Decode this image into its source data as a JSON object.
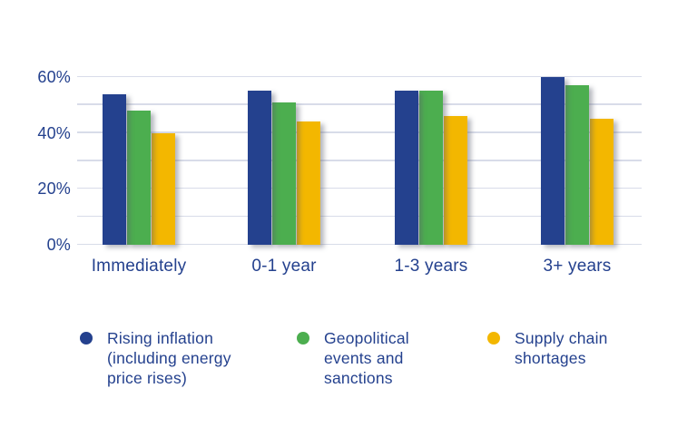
{
  "chart_data": {
    "type": "bar",
    "title": "",
    "xlabel": "",
    "ylabel": "",
    "categories": [
      "Immediately",
      "0-1 year",
      "1-3 years",
      "3+ years"
    ],
    "series": [
      {
        "name": "Rising inflation (including energy price rises)",
        "legend_text": "Rising inflation\n(including energy\nprice rises)",
        "color": "#24418e",
        "values": [
          54,
          55,
          55,
          60
        ]
      },
      {
        "name": "Geopolitical events and sanctions",
        "legend_text": "Geopolitical\nevents and\nsanctions",
        "color": "#4cae4f",
        "values": [
          48,
          51,
          55,
          57
        ]
      },
      {
        "name": "Supply chain shortages",
        "legend_text": "Supply chain\nshortages",
        "color": "#f3b700",
        "values": [
          40,
          44,
          46,
          45
        ]
      }
    ],
    "y_ticks": [
      {
        "value": 0,
        "label": "0%"
      },
      {
        "value": 20,
        "label": "20%"
      },
      {
        "value": 40,
        "label": "40%"
      },
      {
        "value": 60,
        "label": "60%"
      }
    ],
    "ylim": [
      0,
      60
    ],
    "gridline_step": 10,
    "grid": true,
    "legend_position": "bottom",
    "colors": {
      "text": "#24418e",
      "gridline": "#d8dce9",
      "background": "#ffffff"
    }
  }
}
